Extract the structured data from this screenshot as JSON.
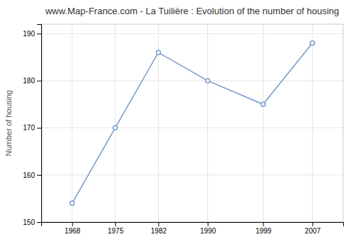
{
  "chart_data": {
    "type": "line",
    "title": "www.Map-France.com - La Tuilière : Evolution of the number of housing",
    "ylabel": "Number of housing",
    "x": [
      1968,
      1975,
      1982,
      1990,
      1999,
      2007
    ],
    "values": [
      154,
      170,
      186,
      180,
      175,
      188
    ],
    "xlim": [
      1963,
      2012
    ],
    "xticks": [
      1968,
      1975,
      1982,
      1990,
      1999,
      2007
    ],
    "ylim": [
      150,
      192
    ],
    "yticks": [
      150,
      160,
      170,
      180,
      190
    ],
    "color": "#7799cc",
    "marker": "circle",
    "grid": true
  }
}
